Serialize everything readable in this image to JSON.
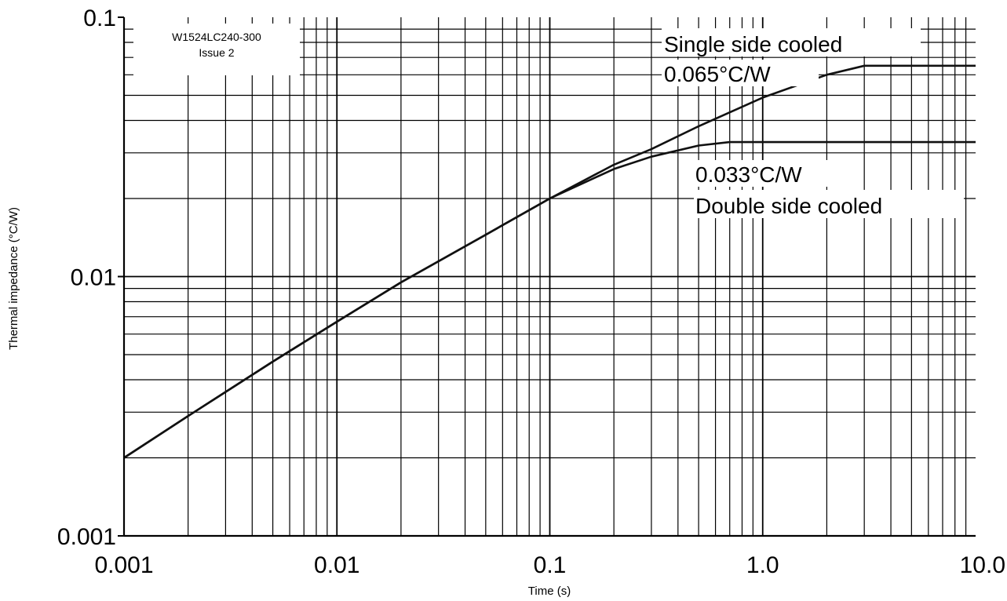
{
  "chart_data": {
    "type": "line",
    "xlabel": "Time (s)",
    "ylabel": "Thermal impedance (°C/W)",
    "x_scale": "log",
    "y_scale": "log",
    "xlim": [
      0.001,
      10.0
    ],
    "ylim": [
      0.001,
      0.1
    ],
    "x_ticks": [
      "0.001",
      "0.01",
      "0.1",
      "1.0",
      "10.0"
    ],
    "y_ticks": [
      "0.001",
      "0.01",
      "0.1"
    ],
    "grid": true,
    "reference_box": [
      "W1524LC240-300",
      "Issue 2"
    ],
    "series": [
      {
        "name": "Single side cooled",
        "x": [
          0.001,
          0.002,
          0.005,
          0.01,
          0.02,
          0.05,
          0.1,
          0.2,
          0.3,
          0.5,
          1.0,
          2.0,
          3.0,
          10.0
        ],
        "y": [
          0.002,
          0.0029,
          0.0047,
          0.0067,
          0.0095,
          0.0145,
          0.02,
          0.027,
          0.031,
          0.038,
          0.049,
          0.06,
          0.065,
          0.065
        ]
      },
      {
        "name": "Double side cooled",
        "x": [
          0.001,
          0.002,
          0.005,
          0.01,
          0.02,
          0.05,
          0.1,
          0.2,
          0.3,
          0.5,
          0.7,
          1.0,
          10.0
        ],
        "y": [
          0.002,
          0.0029,
          0.0047,
          0.0067,
          0.0095,
          0.0145,
          0.02,
          0.026,
          0.029,
          0.032,
          0.033,
          0.033,
          0.033
        ]
      }
    ],
    "annotations": [
      {
        "text": "Single side cooled",
        "series": 0
      },
      {
        "text": "0.065°C/W",
        "series": 0
      },
      {
        "text": "0.033°C/W",
        "series": 1
      },
      {
        "text": "Double side cooled",
        "series": 1
      }
    ]
  }
}
